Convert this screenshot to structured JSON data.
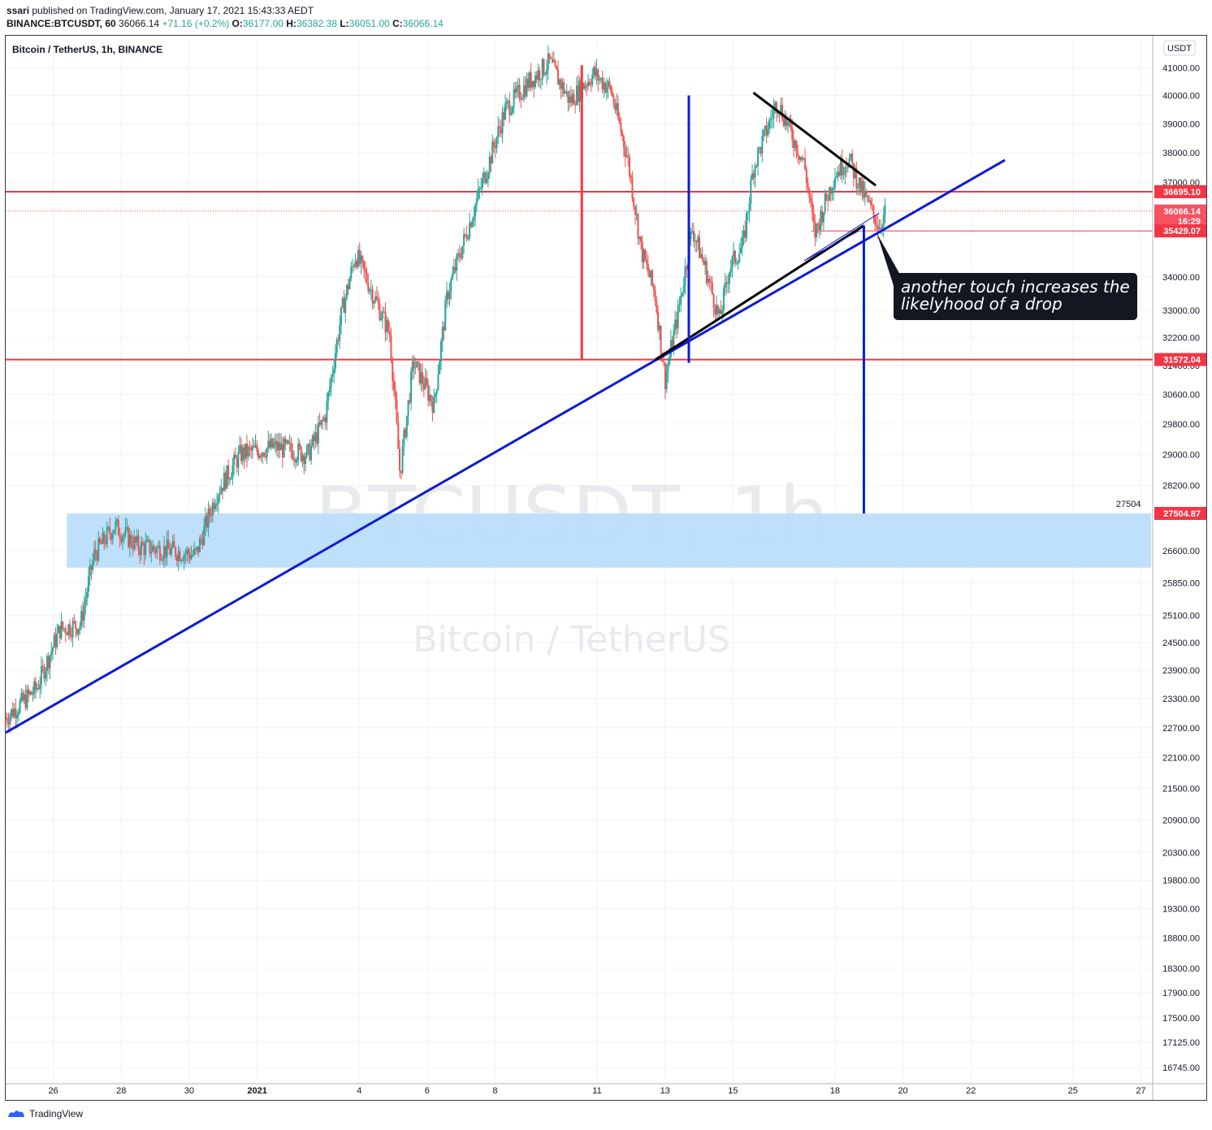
{
  "header": {
    "author": "ssari",
    "published_text": "published on TradingView.com, January 17, 2021 15:43:33 AEDT",
    "symbol": "BINANCE:BTCUSDT, 60",
    "last": "36066.14",
    "change": "+71.16 (+0.2%)",
    "o_label": "O:",
    "o_value": "36177.00",
    "h_label": "H:",
    "h_value": "36382.38",
    "l_label": "L:",
    "l_value": "36051.00",
    "c_label": "C:",
    "c_value": "36066.14"
  },
  "footer": {
    "brand": "TradingView"
  },
  "chart_data": {
    "type": "candlestick",
    "title": "Bitcoin / TetherUS, 1h, BINANCE",
    "currency_label": "USDT",
    "watermark": {
      "symbol": "BTCUSDT, 1h",
      "description": "Bitcoin / TetherUS"
    },
    "x_ticks": [
      "26",
      "28",
      "30",
      "2021",
      "4",
      "6",
      "8",
      "11",
      "13",
      "15",
      "18",
      "20",
      "22",
      "25",
      "27"
    ],
    "x_tick_days": [
      -6,
      -4,
      -2,
      0,
      3,
      5,
      7,
      10,
      12,
      14,
      17,
      19,
      21,
      24,
      26
    ],
    "x_range_days": [
      -7.4,
      26.3
    ],
    "y_ticks": [
      "41000.00",
      "40000.00",
      "39000.00",
      "38000.00",
      "37000.00",
      "34000.00",
      "33000.00",
      "32200.00",
      "31400.00",
      "30600.00",
      "29800.00",
      "29000.00",
      "28200.00",
      "26600.00",
      "25850.00",
      "25100.00",
      "24500.00",
      "23900.00",
      "23300.00",
      "22700.00",
      "22100.00",
      "21500.00",
      "20900.00",
      "20300.00",
      "19800.00",
      "19300.00",
      "18800.00",
      "18300.00",
      "17900.00",
      "17500.00",
      "17125.00",
      "16745.00"
    ],
    "y_scale": "log",
    "y_range": [
      16500,
      42200
    ],
    "approx_close_path": [
      {
        "day": -7.4,
        "price": 22900
      },
      {
        "day": -6.5,
        "price": 23500
      },
      {
        "day": -5.8,
        "price": 24800
      },
      {
        "day": -5.2,
        "price": 24900
      },
      {
        "day": -4.8,
        "price": 26500
      },
      {
        "day": -4.2,
        "price": 27200
      },
      {
        "day": -3.5,
        "price": 26700
      },
      {
        "day": -2.5,
        "price": 26600
      },
      {
        "day": -1.8,
        "price": 26500
      },
      {
        "day": -1.2,
        "price": 28000
      },
      {
        "day": -0.5,
        "price": 29000
      },
      {
        "day": 0.5,
        "price": 29200
      },
      {
        "day": 1.5,
        "price": 29000
      },
      {
        "day": 2.0,
        "price": 30000
      },
      {
        "day": 2.5,
        "price": 33000
      },
      {
        "day": 2.9,
        "price": 34700
      },
      {
        "day": 3.4,
        "price": 33500
      },
      {
        "day": 3.9,
        "price": 32300
      },
      {
        "day": 4.2,
        "price": 28500
      },
      {
        "day": 4.6,
        "price": 31500
      },
      {
        "day": 5.2,
        "price": 30300
      },
      {
        "day": 5.6,
        "price": 33500
      },
      {
        "day": 6.2,
        "price": 35500
      },
      {
        "day": 6.8,
        "price": 37600
      },
      {
        "day": 7.3,
        "price": 39500
      },
      {
        "day": 8.0,
        "price": 40500
      },
      {
        "day": 8.6,
        "price": 41200
      },
      {
        "day": 9.2,
        "price": 39800
      },
      {
        "day": 9.9,
        "price": 40800
      },
      {
        "day": 10.4,
        "price": 40200
      },
      {
        "day": 10.9,
        "price": 37800
      },
      {
        "day": 11.3,
        "price": 34800
      },
      {
        "day": 11.7,
        "price": 33500
      },
      {
        "day": 12.0,
        "price": 31000
      },
      {
        "day": 12.4,
        "price": 33000
      },
      {
        "day": 12.8,
        "price": 35500
      },
      {
        "day": 13.2,
        "price": 34200
      },
      {
        "day": 13.6,
        "price": 32700
      },
      {
        "day": 13.9,
        "price": 34300
      },
      {
        "day": 14.3,
        "price": 35000
      },
      {
        "day": 14.6,
        "price": 37500
      },
      {
        "day": 15.0,
        "price": 38800
      },
      {
        "day": 15.3,
        "price": 39800
      },
      {
        "day": 15.7,
        "price": 38700
      },
      {
        "day": 16.1,
        "price": 37600
      },
      {
        "day": 16.4,
        "price": 35300
      },
      {
        "day": 16.7,
        "price": 36300
      },
      {
        "day": 17.0,
        "price": 37300
      },
      {
        "day": 17.4,
        "price": 37800
      },
      {
        "day": 17.8,
        "price": 36700
      },
      {
        "day": 18.1,
        "price": 36000
      },
      {
        "day": 18.3,
        "price": 35600
      },
      {
        "day": 18.5,
        "price": 36066
      }
    ],
    "price_labels": [
      {
        "text": "36695.10",
        "price": 36695.1,
        "color": "#f23645"
      },
      {
        "text": "36066.14",
        "price": 36066.14,
        "color": "#f7525f"
      },
      {
        "text": "16:29",
        "price": 35750,
        "color": "#f7525f"
      },
      {
        "text": "35429.07",
        "price": 35429.07,
        "color": "#f23645"
      },
      {
        "text": "31572.04",
        "price": 31572.04,
        "color": "#f23645"
      },
      {
        "text": "27504.87",
        "price": 27504.87,
        "color": "#f23645"
      }
    ],
    "target_label": {
      "text": "27504",
      "price": 27504,
      "day": 26.0
    },
    "horizontal_lines": [
      {
        "price": 36695.1,
        "color": "#f23645"
      },
      {
        "price": 31572.04,
        "color": "#f23645"
      },
      {
        "price": 35429.07,
        "color": "#f23645"
      }
    ],
    "zone": {
      "price_top": 27504,
      "price_bottom": 26200,
      "day_start": -5.6,
      "day_end": 26.3,
      "color": "#bbdefb"
    },
    "trendlines": [
      {
        "from": {
          "day": -7.4,
          "price": 22600
        },
        "to": {
          "day": 22.0,
          "price": 37750
        },
        "color": "#0d1bd6"
      },
      {
        "from": {
          "day": 11.7,
          "price": 31560
        },
        "to": {
          "day": 17.85,
          "price": 35600
        },
        "color": "#000000"
      },
      {
        "from": {
          "day": 14.6,
          "price": 40100
        },
        "to": {
          "day": 18.2,
          "price": 36900
        },
        "color": "#000000"
      }
    ],
    "vertical_lines": [
      {
        "day": 9.55,
        "price_top": 41100,
        "price_bottom": 31572,
        "color": "#f23645"
      },
      {
        "day": 12.7,
        "price_top": 40000,
        "price_bottom": 31480,
        "color": "#0d1bd6"
      },
      {
        "day": 17.85,
        "price_top": 35600,
        "price_bottom": 27504,
        "color": "#0d1bd6"
      }
    ],
    "annotation": {
      "line1": "another touch increases the",
      "line2": "likelyhood of a drop",
      "anchor": {
        "day": 17.9,
        "price": 35450
      }
    }
  }
}
